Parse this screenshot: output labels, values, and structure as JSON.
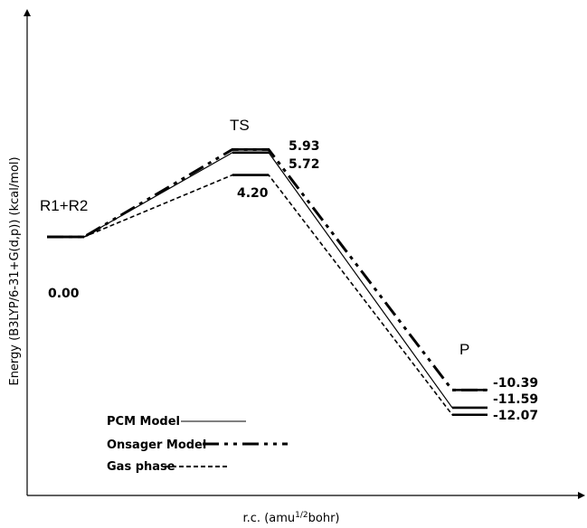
{
  "chart_data": {
    "type": "line",
    "title": "",
    "xlabel": "r.c. (amu",
    "xlabel_sup": "1/2",
    "xlabel_tail": "bohr)",
    "ylabel": "Energy  (B3LYP/6-31+G(d,p)) (kcal/mol)",
    "ylim": [
      -14,
      11
    ],
    "states": [
      "R1+R2",
      "TS",
      "P"
    ],
    "series": [
      {
        "name": "PCM Model",
        "style": "solid-thin",
        "values": [
          0.0,
          5.72,
          -11.59
        ],
        "labels": [
          "0.00",
          "5.72",
          "-11.59"
        ]
      },
      {
        "name": "Onsager Model",
        "style": "dash-dot-thick",
        "values": [
          0.0,
          5.93,
          -10.39
        ],
        "labels": [
          "0.00",
          "5.93",
          "-10.39"
        ]
      },
      {
        "name": "Gas phase",
        "style": "dashed",
        "values": [
          0.0,
          4.2,
          -12.07
        ],
        "labels": [
          "0.00",
          "4.20",
          "-12.07"
        ]
      }
    ],
    "legend_position": "bottom-left",
    "grid": false,
    "colors": {
      "line": "#000000",
      "background": "#ffffff"
    }
  }
}
